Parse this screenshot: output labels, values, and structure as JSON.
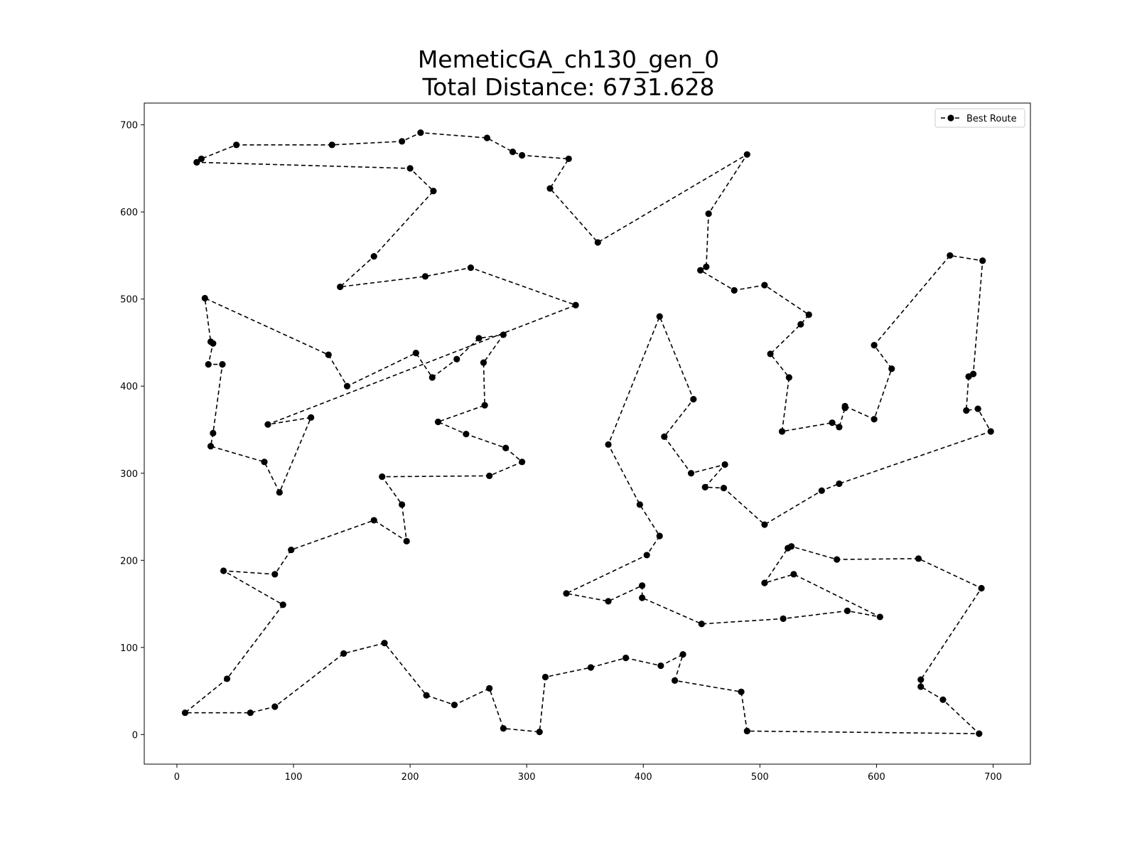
{
  "chart_data": {
    "type": "line",
    "title": "MemeticGA_ch130_gen_0",
    "subtitle": "Total Distance: 6731.628",
    "xlabel": "",
    "ylabel": "",
    "xlim": [
      -28,
      732
    ],
    "ylim": [
      -34,
      725
    ],
    "xticks": [
      0,
      100,
      200,
      300,
      400,
      500,
      600,
      700
    ],
    "yticks": [
      0,
      100,
      200,
      300,
      400,
      500,
      600,
      700
    ],
    "grid": false,
    "legend": {
      "position": "top-right",
      "entries": [
        "Best Route"
      ]
    },
    "series": [
      {
        "name": "Best Route",
        "color": "#000000",
        "line_style": "dashed",
        "marker": "circle",
        "points": [
          [
            17,
            657
          ],
          [
            21,
            661
          ],
          [
            51,
            677
          ],
          [
            133,
            677
          ],
          [
            193,
            681
          ],
          [
            209,
            691
          ],
          [
            266,
            685
          ],
          [
            288,
            669
          ],
          [
            296,
            665
          ],
          [
            336,
            661
          ],
          [
            320,
            627
          ],
          [
            361,
            565
          ],
          [
            489,
            666
          ],
          [
            456,
            598
          ],
          [
            454,
            537
          ],
          [
            449,
            533
          ],
          [
            478,
            510
          ],
          [
            504,
            516
          ],
          [
            542,
            482
          ],
          [
            535,
            471
          ],
          [
            509,
            437
          ],
          [
            525,
            410
          ],
          [
            519,
            348
          ],
          [
            562,
            358
          ],
          [
            568,
            353
          ],
          [
            573,
            375
          ],
          [
            573,
            377
          ],
          [
            598,
            362
          ],
          [
            613,
            420
          ],
          [
            598,
            447
          ],
          [
            663,
            550
          ],
          [
            691,
            544
          ],
          [
            683,
            414
          ],
          [
            679,
            411
          ],
          [
            677,
            372
          ],
          [
            687,
            374
          ],
          [
            698,
            348
          ],
          [
            568,
            288
          ],
          [
            553,
            280
          ],
          [
            504,
            241
          ],
          [
            469,
            283
          ],
          [
            453,
            284
          ],
          [
            470,
            310
          ],
          [
            441,
            300
          ],
          [
            418,
            342
          ],
          [
            443,
            385
          ],
          [
            414,
            480
          ],
          [
            370,
            333
          ],
          [
            397,
            264
          ],
          [
            414,
            228
          ],
          [
            403,
            206
          ],
          [
            334,
            162
          ],
          [
            370,
            153
          ],
          [
            399,
            171
          ],
          [
            399,
            157
          ],
          [
            450,
            127
          ],
          [
            520,
            133
          ],
          [
            575,
            142
          ],
          [
            603,
            135
          ],
          [
            529,
            184
          ],
          [
            504,
            174
          ],
          [
            524,
            214
          ],
          [
            527,
            216
          ],
          [
            566,
            201
          ],
          [
            636,
            202
          ],
          [
            690,
            168
          ],
          [
            638,
            63
          ],
          [
            638,
            55
          ],
          [
            657,
            40
          ],
          [
            688,
            1
          ],
          [
            489,
            4
          ],
          [
            484,
            49
          ],
          [
            427,
            62
          ],
          [
            434,
            92
          ],
          [
            415,
            79
          ],
          [
            385,
            88
          ],
          [
            355,
            77
          ],
          [
            316,
            66
          ],
          [
            311,
            3
          ],
          [
            280,
            7
          ],
          [
            268,
            53
          ],
          [
            238,
            34
          ],
          [
            214,
            45
          ],
          [
            178,
            105
          ],
          [
            143,
            93
          ],
          [
            84,
            32
          ],
          [
            63,
            25
          ],
          [
            7,
            25
          ],
          [
            43,
            64
          ],
          [
            91,
            149
          ],
          [
            40,
            188
          ],
          [
            84,
            184
          ],
          [
            98,
            212
          ],
          [
            169,
            246
          ],
          [
            197,
            222
          ],
          [
            193,
            264
          ],
          [
            176,
            296
          ],
          [
            268,
            297
          ],
          [
            296,
            313
          ],
          [
            282,
            329
          ],
          [
            248,
            345
          ],
          [
            224,
            359
          ],
          [
            264,
            378
          ],
          [
            263,
            427
          ],
          [
            280,
            459
          ],
          [
            259,
            455
          ],
          [
            240,
            431
          ],
          [
            219,
            410
          ],
          [
            205,
            438
          ],
          [
            146,
            400
          ],
          [
            130,
            436
          ],
          [
            24,
            501
          ],
          [
            29,
            451
          ],
          [
            31,
            449
          ],
          [
            27,
            425
          ],
          [
            39,
            425
          ],
          [
            31,
            346
          ],
          [
            29,
            331
          ],
          [
            75,
            313
          ],
          [
            88,
            278
          ],
          [
            115,
            364
          ],
          [
            78,
            356
          ],
          [
            342,
            493
          ],
          [
            252,
            536
          ],
          [
            213,
            526
          ],
          [
            140,
            514
          ],
          [
            169,
            549
          ],
          [
            220,
            624
          ],
          [
            200,
            650
          ],
          [
            17,
            657
          ]
        ]
      }
    ]
  }
}
